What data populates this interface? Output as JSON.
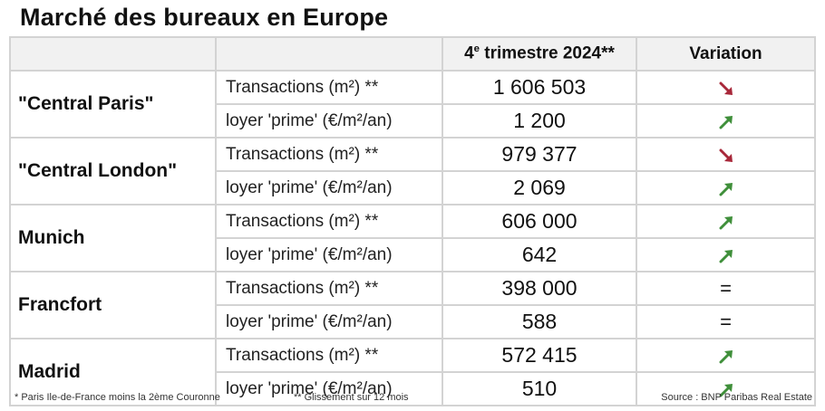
{
  "title": "Marché des bureaux en Europe",
  "header": {
    "period_label": "4",
    "period_sup": "e",
    "period_rest": " trimestre 2024**",
    "variation": "Variation"
  },
  "colors": {
    "down": "#a8283a",
    "up": "#3f8f3a",
    "border": "#d3d3d3",
    "header_bg": "#f1f1f1"
  },
  "rows": [
    {
      "city": "\"Central Paris\"",
      "metrics": [
        {
          "label": "Transactions (m²) **",
          "value": "1 606 503",
          "variation": "down"
        },
        {
          "label": "loyer 'prime' (€/m²/an)",
          "value": "1 200",
          "variation": "up"
        }
      ]
    },
    {
      "city": "\"Central London\"",
      "metrics": [
        {
          "label": "Transactions (m²) **",
          "value": "979 377",
          "variation": "down"
        },
        {
          "label": "loyer 'prime' (€/m²/an)",
          "value": "2 069",
          "variation": "up"
        }
      ]
    },
    {
      "city": "Munich",
      "metrics": [
        {
          "label": "Transactions (m²) **",
          "value": "606 000",
          "variation": "up"
        },
        {
          "label": "loyer 'prime' (€/m²/an)",
          "value": "642",
          "variation": "up"
        }
      ]
    },
    {
      "city": "Francfort",
      "metrics": [
        {
          "label": "Transactions (m²) **",
          "value": "398 000",
          "variation": "="
        },
        {
          "label": "loyer 'prime' (€/m²/an)",
          "value": "588",
          "variation": "="
        }
      ]
    },
    {
      "city": "Madrid",
      "metrics": [
        {
          "label": "Transactions (m²) **",
          "value": "572 415",
          "variation": "up"
        },
        {
          "label": "loyer 'prime' (€/m²/an)",
          "value": "510",
          "variation": "up"
        }
      ]
    }
  ],
  "footer": {
    "note1": "* Paris Ile-de-France moins la 2ème Couronne",
    "note2": "** Glissement sur 12 mois",
    "source": "Source : BNP Paribas Real Estate"
  }
}
